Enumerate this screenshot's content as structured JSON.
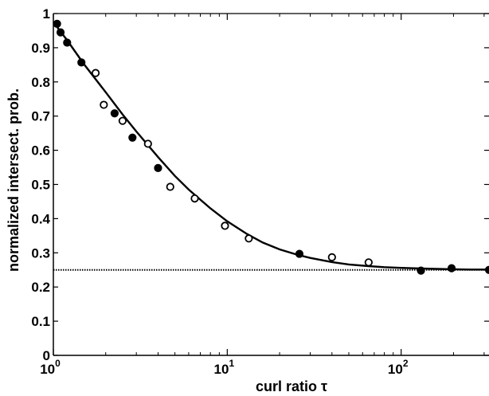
{
  "chart_data": {
    "type": "scatter",
    "title": "",
    "xlabel": "curl ratio τ",
    "ylabel": "normalized intersect. prob.",
    "xscale": "log",
    "xlim": [
      1,
      320
    ],
    "ylim": [
      0,
      1
    ],
    "grid": false,
    "legend": "none",
    "xticks": [
      {
        "value": 1,
        "base": "10",
        "exp": "0"
      },
      {
        "value": 10,
        "base": "10",
        "exp": "1"
      },
      {
        "value": 100,
        "base": "10",
        "exp": "2"
      }
    ],
    "yticks": [
      "0",
      "0.1",
      "0.2",
      "0.3",
      "0.4",
      "0.5",
      "0.6",
      "0.7",
      "0.8",
      "0.9",
      "1"
    ],
    "series": [
      {
        "marker": "filled-circle",
        "x": [
          1.05,
          1.1,
          1.2,
          1.45,
          2.25,
          2.85,
          4.0,
          26.0,
          130.0,
          195.0,
          320.0
        ],
        "y": [
          0.97,
          0.945,
          0.915,
          0.857,
          0.708,
          0.637,
          0.548,
          0.297,
          0.248,
          0.255,
          0.25
        ]
      },
      {
        "marker": "open-circle",
        "x": [
          1.75,
          1.95,
          2.5,
          3.5,
          4.7,
          6.5,
          9.7,
          13.3,
          40.0,
          65.0
        ],
        "y": [
          0.826,
          0.733,
          0.686,
          0.619,
          0.493,
          0.459,
          0.379,
          0.342,
          0.287,
          0.272
        ]
      },
      {
        "marker": "line",
        "x": [
          1,
          1.2,
          1.5,
          2,
          2.5,
          3,
          4,
          5,
          6,
          8,
          10,
          13,
          16,
          20,
          25,
          30,
          40,
          50,
          65,
          80,
          100,
          130,
          160,
          200,
          250,
          320
        ],
        "y": [
          0.975,
          0.922,
          0.852,
          0.77,
          0.705,
          0.655,
          0.58,
          0.525,
          0.485,
          0.43,
          0.392,
          0.355,
          0.33,
          0.31,
          0.295,
          0.285,
          0.273,
          0.266,
          0.261,
          0.258,
          0.256,
          0.254,
          0.253,
          0.252,
          0.251,
          0.251
        ]
      },
      {
        "marker": "dotted-line",
        "x": [
          1,
          320
        ],
        "y": [
          0.25,
          0.25
        ]
      }
    ]
  }
}
